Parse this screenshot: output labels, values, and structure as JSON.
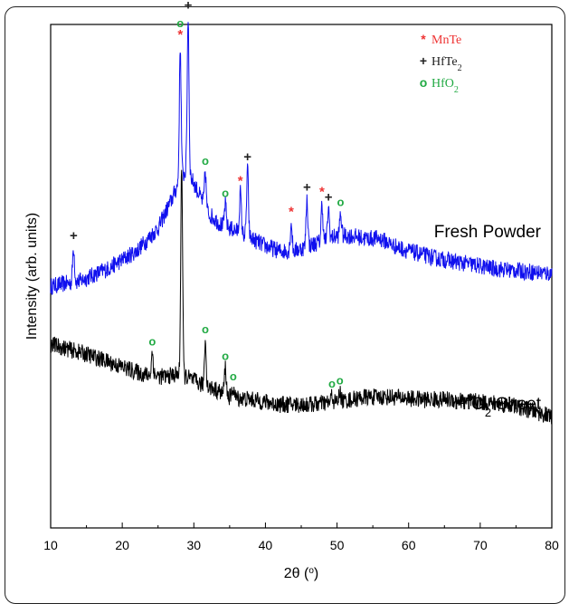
{
  "chart_data": {
    "type": "line",
    "xlabel": "2θ (°)",
    "xlabel_parts": {
      "main": "2θ (",
      "sup": "o",
      "tail": ")"
    },
    "ylabel": "Intensity (arb. units)",
    "xlim": [
      10,
      80
    ],
    "ylim": [
      0,
      10
    ],
    "xticks": [
      10,
      20,
      30,
      40,
      50,
      60,
      70,
      80
    ],
    "grid": false,
    "legend_position": "top-right",
    "legend": [
      {
        "symbol": "*",
        "label": "MnTe",
        "sub": "",
        "color": "#ee3333"
      },
      {
        "symbol": "+",
        "label": "HfTe",
        "sub": "2",
        "color": "#222222"
      },
      {
        "symbol": "o",
        "label": "HfO",
        "sub": "2",
        "color": "#22aa44"
      }
    ],
    "series": [
      {
        "name": "Fresh Powder",
        "label_main": "Fresh Powder",
        "label_sub": "",
        "label_tail": "",
        "color": "#1010ee",
        "baseline": [
          [
            10,
            4.8
          ],
          [
            14,
            4.9
          ],
          [
            18,
            5.15
          ],
          [
            22,
            5.5
          ],
          [
            25,
            5.95
          ],
          [
            27,
            6.55
          ],
          [
            28,
            6.9
          ],
          [
            29,
            7.1
          ],
          [
            30,
            6.85
          ],
          [
            31,
            6.55
          ],
          [
            32,
            6.25
          ],
          [
            34,
            6.0
          ],
          [
            36,
            5.9
          ],
          [
            38,
            5.75
          ],
          [
            40,
            5.6
          ],
          [
            42,
            5.5
          ],
          [
            44,
            5.5
          ],
          [
            46,
            5.6
          ],
          [
            48,
            5.7
          ],
          [
            50,
            5.8
          ],
          [
            52,
            5.8
          ],
          [
            54,
            5.75
          ],
          [
            56,
            5.75
          ],
          [
            58,
            5.6
          ],
          [
            60,
            5.5
          ],
          [
            64,
            5.35
          ],
          [
            68,
            5.25
          ],
          [
            72,
            5.15
          ],
          [
            76,
            5.1
          ],
          [
            80,
            5.05
          ]
        ],
        "peaks": [
          {
            "x": 13.2,
            "height": 0.7,
            "marker": "+"
          },
          {
            "x": 28.1,
            "height": 2.65,
            "marker": "o*"
          },
          {
            "x": 29.2,
            "height": 3.1,
            "marker": "+"
          },
          {
            "x": 31.6,
            "height": 0.7,
            "marker": "o"
          },
          {
            "x": 34.4,
            "height": 0.45,
            "marker": "o"
          },
          {
            "x": 36.5,
            "height": 0.8,
            "marker": "*"
          },
          {
            "x": 37.5,
            "height": 1.35,
            "marker": "+"
          },
          {
            "x": 43.6,
            "height": 0.55,
            "marker": "*"
          },
          {
            "x": 45.8,
            "height": 0.95,
            "marker": "+"
          },
          {
            "x": 47.9,
            "height": 0.75,
            "marker": "*"
          },
          {
            "x": 48.8,
            "height": 0.6,
            "marker": "+"
          },
          {
            "x": 50.5,
            "height": 0.45,
            "marker": "o"
          }
        ]
      },
      {
        "name": "HfO2 Sheet",
        "label_main": "HfO",
        "label_sub": "2",
        "label_tail": " Sheet",
        "color": "#000000",
        "baseline": [
          [
            10,
            3.65
          ],
          [
            15,
            3.45
          ],
          [
            20,
            3.2
          ],
          [
            23,
            3.05
          ],
          [
            26,
            3.0
          ],
          [
            27.5,
            3.05
          ],
          [
            29,
            3.0
          ],
          [
            31,
            2.85
          ],
          [
            33,
            2.75
          ],
          [
            35,
            2.6
          ],
          [
            38,
            2.55
          ],
          [
            42,
            2.45
          ],
          [
            46,
            2.45
          ],
          [
            50,
            2.5
          ],
          [
            54,
            2.6
          ],
          [
            58,
            2.6
          ],
          [
            62,
            2.55
          ],
          [
            66,
            2.55
          ],
          [
            70,
            2.5
          ],
          [
            74,
            2.45
          ],
          [
            78,
            2.3
          ],
          [
            80,
            2.2
          ]
        ],
        "peaks": [
          {
            "x": 24.2,
            "height": 0.45,
            "marker": "o"
          },
          {
            "x": 28.3,
            "height": 4.2,
            "marker": ""
          },
          {
            "x": 31.6,
            "height": 0.9,
            "marker": "o"
          },
          {
            "x": 34.4,
            "height": 0.55,
            "marker": "o"
          },
          {
            "x": 35.5,
            "height": 0.2,
            "marker": "o"
          },
          {
            "x": 49.3,
            "height": 0.15,
            "marker": "o"
          },
          {
            "x": 50.4,
            "height": 0.2,
            "marker": "o"
          }
        ]
      }
    ]
  }
}
